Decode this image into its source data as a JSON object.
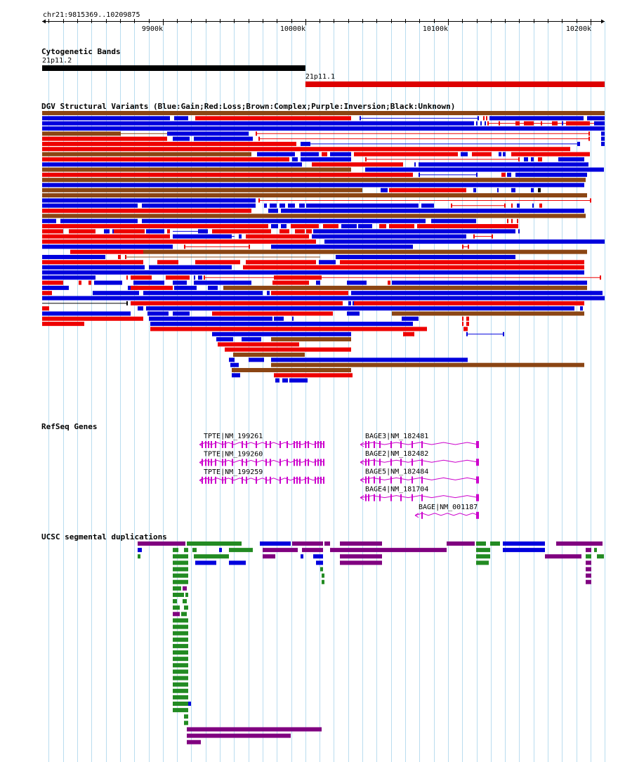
{
  "ruler": {
    "region": "chr21:9815369..10209875",
    "start": 9815369,
    "end": 10209875,
    "ticks": [
      {
        "pos": 9900000,
        "label": "9900k"
      },
      {
        "pos": 10000000,
        "label": "10000k"
      },
      {
        "pos": 10100000,
        "label": "10100k"
      },
      {
        "pos": 10200000,
        "label": "10200k"
      }
    ]
  },
  "tracks": {
    "cyto": {
      "title": "Cytogenetic Bands",
      "bands": [
        {
          "name": "21p11.2",
          "start": 9815369,
          "end": 10000000,
          "color": "#000000",
          "row": 0
        },
        {
          "name": "21p11.1",
          "start": 10000000,
          "end": 10209875,
          "color": "#dd0000",
          "row": 1
        }
      ]
    },
    "dgv": {
      "title": "DGV Structural Variants (Blue:Gain;Red:Loss;Brown:Complex;Purple:Inversion;Black:Unknown)",
      "colors": {
        "b": "#0000dd",
        "r": "#ee0000",
        "n": "#8b4513",
        "k": "#000000"
      }
    },
    "refseq": {
      "title": "RefSeq Genes",
      "color": "#cc00cc",
      "genes": [
        {
          "label": "TPTE|NM_199261",
          "start": 9926000,
          "end": 10014000,
          "row": 0
        },
        {
          "label": "TPTE|NM_199260",
          "start": 9926000,
          "end": 10014000,
          "row": 1
        },
        {
          "label": "TPTE|NM_199259",
          "start": 9926000,
          "end": 10014000,
          "row": 2
        },
        {
          "label": "BAGE3|NM_182481",
          "start": 10040000,
          "end": 10122000,
          "row": 0
        },
        {
          "label": "BAGE2|NM_182482",
          "start": 10040000,
          "end": 10122000,
          "row": 1
        },
        {
          "label": "BAGE5|NM_182484",
          "start": 10040000,
          "end": 10122000,
          "row": 2
        },
        {
          "label": "BAGE4|NM_181704",
          "start": 10040000,
          "end": 10122000,
          "row": 3
        },
        {
          "label": "BAGE|NM_001187",
          "start": 10080000,
          "end": 10122000,
          "row": 4
        }
      ]
    },
    "segdup": {
      "title": "UCSC segmental duplications",
      "colors": {
        "p": "#800080",
        "g": "#228b22",
        "b": "#0000dd"
      }
    }
  }
}
